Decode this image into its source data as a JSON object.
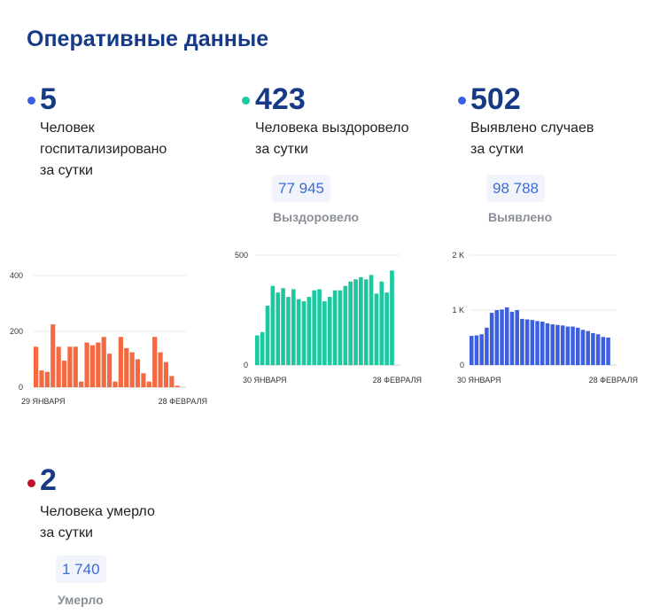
{
  "page": {
    "title": "Оперативные данные"
  },
  "cards": {
    "hosp": {
      "value": "5",
      "desc1": "Человек",
      "desc2": "госпитализировано",
      "desc3": "за сутки",
      "color": "#3b5fe0"
    },
    "recovered": {
      "value": "423",
      "desc1": "Человека выздоровело",
      "desc2": "за сутки",
      "total": "77 945",
      "total_label": "Выздоровело",
      "color": "#1cc8a0"
    },
    "detected": {
      "value": "502",
      "desc1": "Выявлено случаев",
      "desc2": "за сутки",
      "total": "98 788",
      "total_label": "Выявлено",
      "color": "#3b5fe0"
    },
    "died": {
      "value": "2",
      "desc1": "Человека умерло",
      "desc2": "за сутки",
      "total": "1 740",
      "total_label": "Умерло",
      "color": "#c0142a"
    }
  },
  "chart_data": [
    {
      "type": "bar",
      "color": "#f4693f",
      "x_start_label": "29 ЯНВАРЯ",
      "x_end_label": "28 ФЕВРАЛЯ",
      "yticks": [
        0,
        200,
        400
      ],
      "ytick_labels": [
        "0",
        "200",
        "400"
      ],
      "ylim": [
        0,
        400
      ],
      "values": [
        145,
        60,
        55,
        225,
        145,
        95,
        145,
        145,
        20,
        160,
        150,
        160,
        180,
        120,
        20,
        180,
        140,
        125,
        100,
        50,
        20,
        180,
        125,
        90,
        40,
        5
      ]
    },
    {
      "type": "bar",
      "color": "#1cc8a0",
      "x_start_label": "30 ЯНВАРЯ",
      "x_end_label": "28 ФЕВРАЛЯ",
      "yticks": [
        0,
        500
      ],
      "ytick_labels": [
        "0",
        "500"
      ],
      "ylim": [
        0,
        500
      ],
      "values": [
        135,
        150,
        270,
        360,
        330,
        350,
        310,
        345,
        300,
        290,
        310,
        340,
        345,
        290,
        310,
        340,
        340,
        360,
        380,
        390,
        400,
        390,
        410,
        325,
        380,
        330,
        430
      ]
    },
    {
      "type": "bar",
      "color": "#3b5fe0",
      "x_start_label": "30 ЯНВАРЯ",
      "x_end_label": "28 ФЕВРАЛЯ",
      "yticks": [
        0,
        1000,
        2000
      ],
      "ytick_labels": [
        "0",
        "1 K",
        "2 K"
      ],
      "ylim": [
        0,
        2000
      ],
      "values": [
        530,
        540,
        560,
        680,
        950,
        1000,
        1010,
        1050,
        970,
        1000,
        840,
        830,
        820,
        800,
        790,
        760,
        740,
        730,
        720,
        700,
        700,
        680,
        640,
        620,
        580,
        560,
        510,
        500
      ]
    }
  ]
}
